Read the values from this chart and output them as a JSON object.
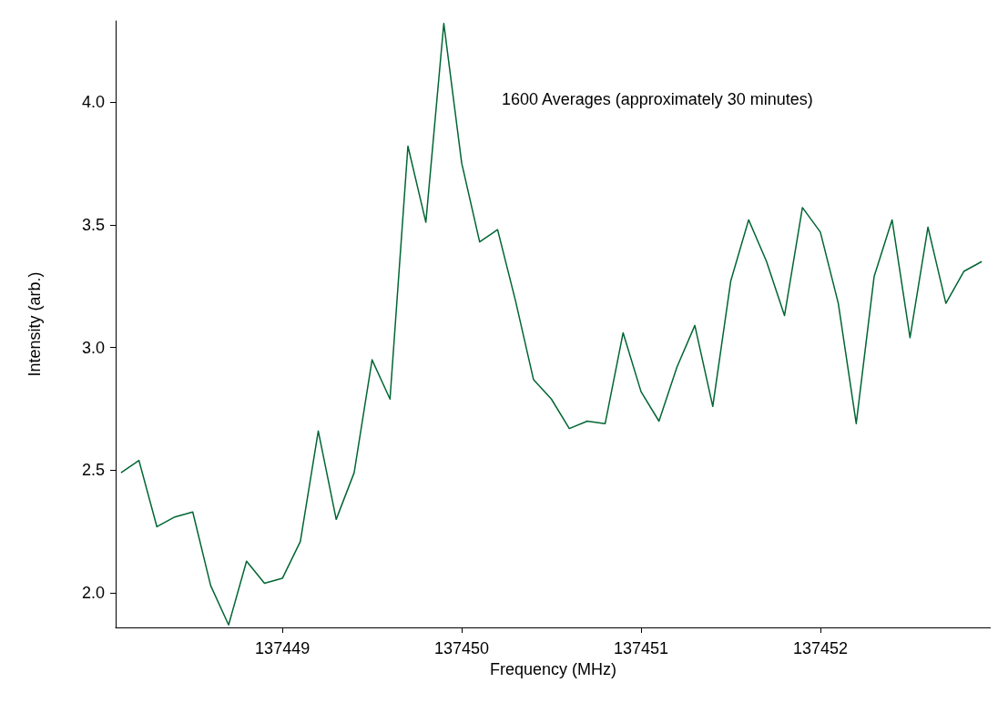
{
  "chart_data": {
    "type": "line",
    "xlabel": "Frequency (MHz)",
    "ylabel": "Intensity (arb.)",
    "annotations": [
      "1600 Averages (approximately 30 minutes)"
    ],
    "x": [
      137448.1,
      137448.2,
      137448.3,
      137448.4,
      137448.5,
      137448.6,
      137448.7,
      137448.8,
      137448.9,
      137449.0,
      137449.1,
      137449.2,
      137449.3,
      137449.4,
      137449.5,
      137449.6,
      137449.7,
      137449.8,
      137449.9,
      137450.0,
      137450.1,
      137450.2,
      137450.3,
      137450.4,
      137450.5,
      137450.6,
      137450.7,
      137450.8,
      137450.9,
      137451.0,
      137451.1,
      137451.2,
      137451.3,
      137451.4,
      137451.5,
      137451.6,
      137451.7,
      137451.8,
      137451.9,
      137452.0,
      137452.1,
      137452.2,
      137452.3,
      137452.4,
      137452.5,
      137452.6,
      137452.7,
      137452.8,
      137452.9
    ],
    "series": [
      {
        "color": "#006633",
        "values": [
          2.49,
          2.54,
          2.27,
          2.31,
          2.33,
          2.03,
          1.87,
          2.13,
          2.04,
          2.06,
          2.21,
          2.66,
          2.3,
          2.49,
          2.95,
          2.79,
          3.82,
          3.51,
          4.32,
          3.75,
          3.43,
          3.48,
          3.19,
          2.87,
          2.79,
          2.67,
          2.7,
          2.69,
          3.06,
          2.82,
          2.7,
          2.92,
          3.09,
          2.76,
          3.27,
          3.52,
          3.35,
          3.13,
          3.57,
          3.47,
          3.18,
          2.69,
          3.29,
          3.52,
          3.04,
          3.49,
          3.18,
          3.31,
          3.35
        ]
      }
    ],
    "xlim": [
      137448.07,
      137452.95
    ],
    "xticks": [
      137449,
      137450,
      137451,
      137452
    ],
    "ylim": [
      1.86,
      4.33
    ],
    "yticks": [
      {
        "value": 2,
        "label": "2.0"
      },
      {
        "value": 2.5,
        "label": "2.5"
      },
      {
        "value": 3,
        "label": "3.0"
      },
      {
        "value": 3.5,
        "label": "3.5"
      },
      {
        "value": 4,
        "label": "4.0"
      }
    ],
    "grid": false,
    "marker": "none",
    "line_style": "solid"
  }
}
